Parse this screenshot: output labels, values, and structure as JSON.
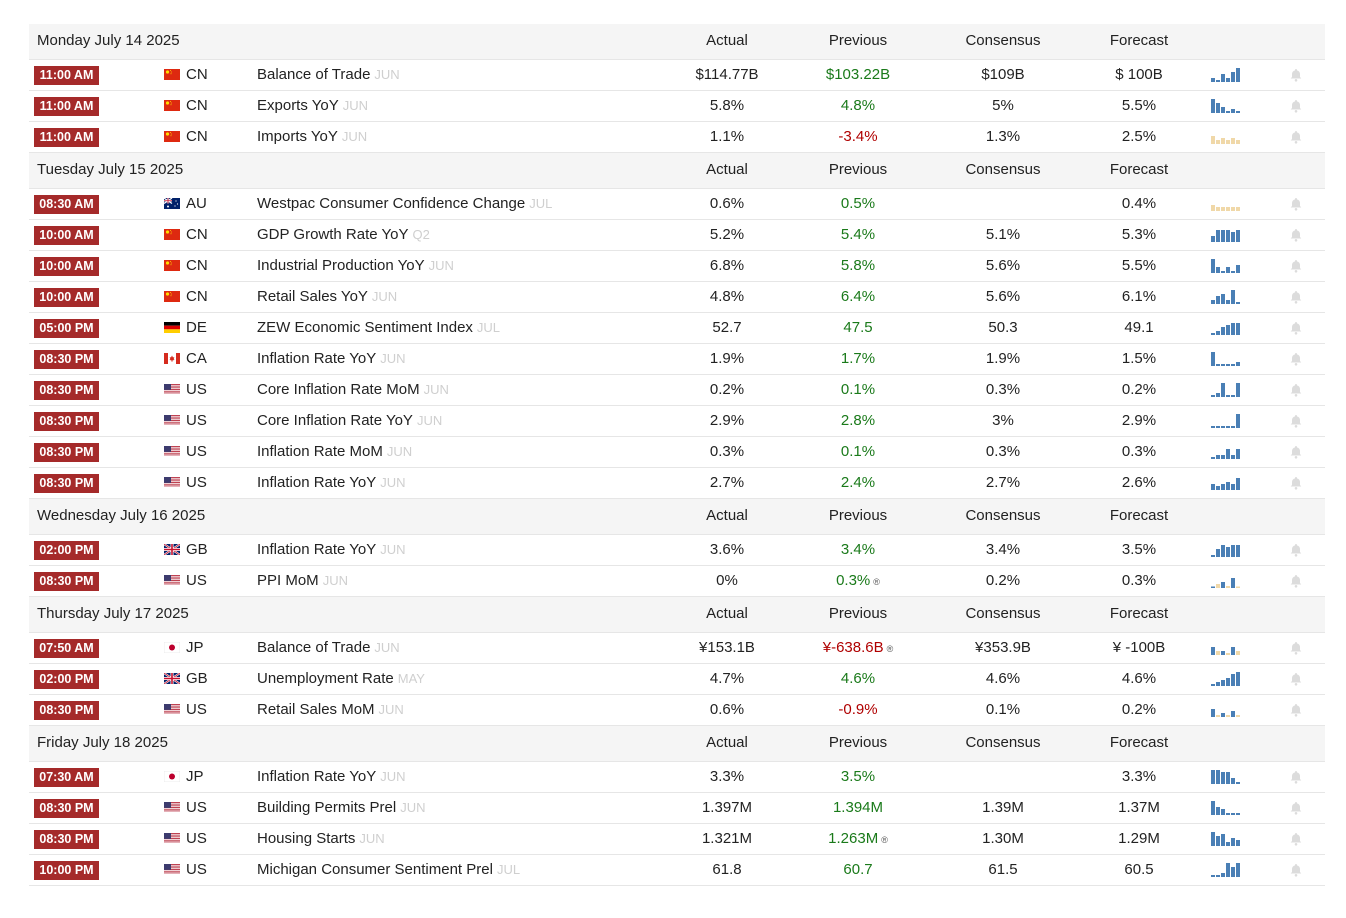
{
  "colors": {
    "accent_time": "#a52a2a",
    "positive": "#1a7a1a",
    "negative": "#b00000",
    "spark_blue": "#4a7fb5",
    "spark_tan": "#f0d8a8"
  },
  "columns": {
    "actual": "Actual",
    "previous": "Previous",
    "consensus": "Consensus",
    "forecast": "Forecast"
  },
  "days": [
    {
      "date": "Monday July 14 2025",
      "events": [
        {
          "time": "11:00 AM",
          "flag": "cn",
          "country": "CN",
          "name": "Balance of Trade",
          "ref": "JUN",
          "actual": "$114.77B",
          "previous": "$103.22B",
          "prev_class": "pos",
          "revised": false,
          "consensus": "$109B",
          "forecast": "$ 100B",
          "spark": [
            2,
            1,
            4,
            2,
            5,
            7
          ],
          "spark_color": "blue"
        },
        {
          "time": "11:00 AM",
          "flag": "cn",
          "country": "CN",
          "name": "Exports YoY",
          "ref": "JUN",
          "actual": "5.8%",
          "previous": "4.8%",
          "prev_class": "pos",
          "revised": false,
          "consensus": "5%",
          "forecast": "5.5%",
          "spark": [
            7,
            5,
            3,
            1,
            2,
            1
          ],
          "spark_color": "blue"
        },
        {
          "time": "11:00 AM",
          "flag": "cn",
          "country": "CN",
          "name": "Imports YoY",
          "ref": "JUN",
          "actual": "1.1%",
          "previous": "-3.4%",
          "prev_class": "neg",
          "revised": false,
          "consensus": "1.3%",
          "forecast": "2.5%",
          "spark": [
            4,
            2,
            3,
            2,
            3,
            2
          ],
          "spark_color": "tan"
        }
      ]
    },
    {
      "date": "Tuesday July 15 2025",
      "events": [
        {
          "time": "08:30 AM",
          "flag": "au",
          "country": "AU",
          "name": "Westpac Consumer Confidence Change",
          "ref": "JUL",
          "actual": "0.6%",
          "previous": "0.5%",
          "prev_class": "pos",
          "revised": false,
          "consensus": "",
          "forecast": "0.4%",
          "spark": [
            3,
            2,
            2,
            2,
            2,
            2
          ],
          "spark_color": "tan"
        },
        {
          "time": "10:00 AM",
          "flag": "cn",
          "country": "CN",
          "name": "GDP Growth Rate YoY",
          "ref": "Q2",
          "actual": "5.2%",
          "previous": "5.4%",
          "prev_class": "pos",
          "revised": false,
          "consensus": "5.1%",
          "forecast": "5.3%",
          "spark": [
            3,
            6,
            6,
            6,
            5,
            6
          ],
          "spark_color": "blue"
        },
        {
          "time": "10:00 AM",
          "flag": "cn",
          "country": "CN",
          "name": "Industrial Production YoY",
          "ref": "JUN",
          "actual": "6.8%",
          "previous": "5.8%",
          "prev_class": "pos",
          "revised": false,
          "consensus": "5.6%",
          "forecast": "5.5%",
          "spark": [
            7,
            3,
            1,
            3,
            1,
            4
          ],
          "spark_color": "blue"
        },
        {
          "time": "10:00 AM",
          "flag": "cn",
          "country": "CN",
          "name": "Retail Sales YoY",
          "ref": "JUN",
          "actual": "4.8%",
          "previous": "6.4%",
          "prev_class": "pos",
          "revised": false,
          "consensus": "5.6%",
          "forecast": "6.1%",
          "spark": [
            2,
            4,
            5,
            2,
            7,
            1
          ],
          "spark_color": "blue"
        },
        {
          "time": "05:00 PM",
          "flag": "de",
          "country": "DE",
          "name": "ZEW Economic Sentiment Index",
          "ref": "JUL",
          "actual": "52.7",
          "previous": "47.5",
          "prev_class": "pos",
          "revised": false,
          "consensus": "50.3",
          "forecast": "49.1",
          "spark": [
            1,
            2,
            4,
            5,
            6,
            6
          ],
          "spark_color": "blue"
        },
        {
          "time": "08:30 PM",
          "flag": "ca",
          "country": "CA",
          "name": "Inflation Rate YoY",
          "ref": "JUN",
          "actual": "1.9%",
          "previous": "1.7%",
          "prev_class": "pos",
          "revised": false,
          "consensus": "1.9%",
          "forecast": "1.5%",
          "spark": [
            7,
            1,
            1,
            1,
            1,
            2
          ],
          "spark_color": "blue"
        },
        {
          "time": "08:30 PM",
          "flag": "us",
          "country": "US",
          "name": "Core Inflation Rate MoM",
          "ref": "JUN",
          "actual": "0.2%",
          "previous": "0.1%",
          "prev_class": "pos",
          "revised": false,
          "consensus": "0.3%",
          "forecast": "0.2%",
          "spark": [
            1,
            2,
            7,
            1,
            1,
            7
          ],
          "spark_color": "blue"
        },
        {
          "time": "08:30 PM",
          "flag": "us",
          "country": "US",
          "name": "Core Inflation Rate YoY",
          "ref": "JUN",
          "actual": "2.9%",
          "previous": "2.8%",
          "prev_class": "pos",
          "revised": false,
          "consensus": "3%",
          "forecast": "2.9%",
          "spark": [
            1,
            1,
            1,
            1,
            1,
            7
          ],
          "spark_color": "blue"
        },
        {
          "time": "08:30 PM",
          "flag": "us",
          "country": "US",
          "name": "Inflation Rate MoM",
          "ref": "JUN",
          "actual": "0.3%",
          "previous": "0.1%",
          "prev_class": "pos",
          "revised": false,
          "consensus": "0.3%",
          "forecast": "0.3%",
          "spark": [
            1,
            2,
            2,
            5,
            2,
            5
          ],
          "spark_color": "blue"
        },
        {
          "time": "08:30 PM",
          "flag": "us",
          "country": "US",
          "name": "Inflation Rate YoY",
          "ref": "JUN",
          "actual": "2.7%",
          "previous": "2.4%",
          "prev_class": "pos",
          "revised": false,
          "consensus": "2.7%",
          "forecast": "2.6%",
          "spark": [
            3,
            2,
            3,
            4,
            3,
            6
          ],
          "spark_color": "blue"
        }
      ]
    },
    {
      "date": "Wednesday July 16 2025",
      "events": [
        {
          "time": "02:00 PM",
          "flag": "gb",
          "country": "GB",
          "name": "Inflation Rate YoY",
          "ref": "JUN",
          "actual": "3.6%",
          "previous": "3.4%",
          "prev_class": "pos",
          "revised": false,
          "consensus": "3.4%",
          "forecast": "3.5%",
          "spark": [
            1,
            4,
            6,
            5,
            6,
            6
          ],
          "spark_color": "blue"
        },
        {
          "time": "08:30 PM",
          "flag": "us",
          "country": "US",
          "name": "PPI MoM",
          "ref": "JUN",
          "actual": "0%",
          "previous": "0.3%",
          "prev_class": "pos",
          "revised": true,
          "consensus": "0.2%",
          "forecast": "0.3%",
          "spark": [
            0,
            2,
            3,
            1,
            5,
            0
          ],
          "spark_color": "mixed"
        }
      ]
    },
    {
      "date": "Thursday July 17 2025",
      "events": [
        {
          "time": "07:50 AM",
          "flag": "jp",
          "country": "JP",
          "name": "Balance of Trade",
          "ref": "JUN",
          "actual": "¥153.1B",
          "previous": "¥-638.6B",
          "prev_class": "neg",
          "revised": true,
          "consensus": "¥353.9B",
          "forecast": "¥ -100B",
          "spark": [
            4,
            2,
            2,
            1,
            4,
            2
          ],
          "spark_color": "mixed"
        },
        {
          "time": "02:00 PM",
          "flag": "gb",
          "country": "GB",
          "name": "Unemployment Rate",
          "ref": "MAY",
          "actual": "4.7%",
          "previous": "4.6%",
          "prev_class": "pos",
          "revised": false,
          "consensus": "4.6%",
          "forecast": "4.6%",
          "spark": [
            1,
            2,
            3,
            4,
            6,
            7
          ],
          "spark_color": "blue"
        },
        {
          "time": "08:30 PM",
          "flag": "us",
          "country": "US",
          "name": "Retail Sales MoM",
          "ref": "JUN",
          "actual": "0.6%",
          "previous": "-0.9%",
          "prev_class": "neg",
          "revised": false,
          "consensus": "0.1%",
          "forecast": "0.2%",
          "spark": [
            4,
            1,
            2,
            1,
            3,
            1
          ],
          "spark_color": "mixed"
        }
      ]
    },
    {
      "date": "Friday July 18 2025",
      "events": [
        {
          "time": "07:30 AM",
          "flag": "jp",
          "country": "JP",
          "name": "Inflation Rate YoY",
          "ref": "JUN",
          "actual": "3.3%",
          "previous": "3.5%",
          "prev_class": "pos",
          "revised": false,
          "consensus": "",
          "forecast": "3.3%",
          "spark": [
            7,
            7,
            6,
            6,
            3,
            1
          ],
          "spark_color": "blue"
        },
        {
          "time": "08:30 PM",
          "flag": "us",
          "country": "US",
          "name": "Building Permits Prel",
          "ref": "JUN",
          "actual": "1.397M",
          "previous": "1.394M",
          "prev_class": "pos",
          "revised": false,
          "consensus": "1.39M",
          "forecast": "1.37M",
          "spark": [
            7,
            4,
            3,
            1,
            1,
            1
          ],
          "spark_color": "blue"
        },
        {
          "time": "08:30 PM",
          "flag": "us",
          "country": "US",
          "name": "Housing Starts",
          "ref": "JUN",
          "actual": "1.321M",
          "previous": "1.263M",
          "prev_class": "pos",
          "revised": true,
          "consensus": "1.30M",
          "forecast": "1.29M",
          "spark": [
            7,
            5,
            6,
            2,
            4,
            3
          ],
          "spark_color": "blue"
        },
        {
          "time": "10:00 PM",
          "flag": "us",
          "country": "US",
          "name": "Michigan Consumer Sentiment Prel",
          "ref": "JUL",
          "actual": "61.8",
          "previous": "60.7",
          "prev_class": "pos",
          "revised": false,
          "consensus": "61.5",
          "forecast": "60.5",
          "spark": [
            1,
            1,
            2,
            7,
            5,
            7
          ],
          "spark_color": "blue"
        }
      ]
    }
  ]
}
